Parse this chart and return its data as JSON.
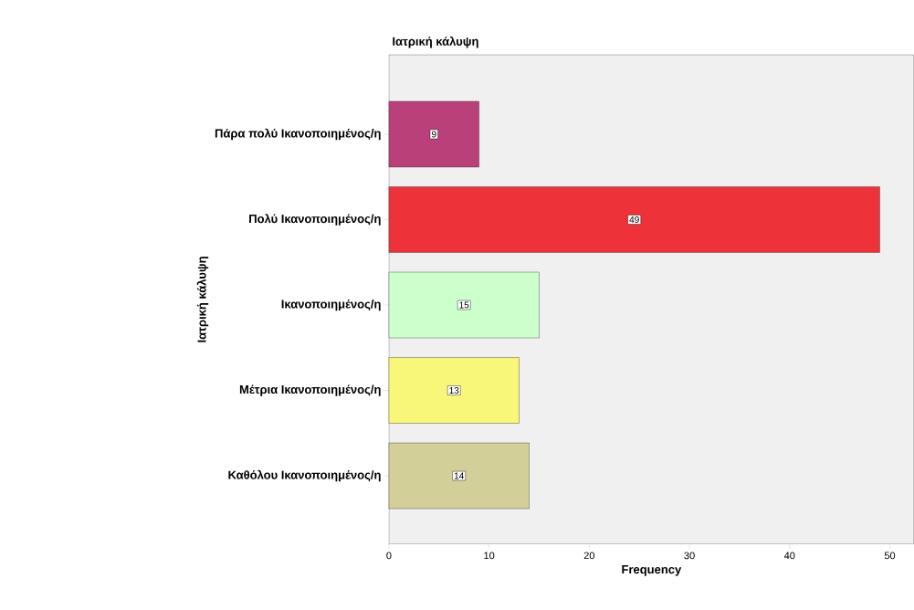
{
  "chart_data": {
    "type": "bar",
    "orientation": "horizontal",
    "title": "Ιατρική κάλυψη",
    "xlabel": "Frequency",
    "ylabel": "Ιατρική κάλυψη",
    "categories": [
      "Πάρα πολύ Ικανοποιημένος/η",
      "Πολύ Ικανοποιημένος/η",
      "Ικανοποιημένος/η",
      "Μέτρια Ικανοποιημένος/η",
      "Καθόλου Ικανοποιημένος/η"
    ],
    "values": [
      9,
      49,
      15,
      13,
      14
    ],
    "colors": [
      "#b94079",
      "#ee3239",
      "#ccffcc",
      "#f8f77a",
      "#d3cf99"
    ],
    "xlim": [
      0,
      52.4
    ],
    "xticks": [
      0,
      10,
      20,
      30,
      40,
      50
    ],
    "data_labels": true,
    "grid": false
  }
}
